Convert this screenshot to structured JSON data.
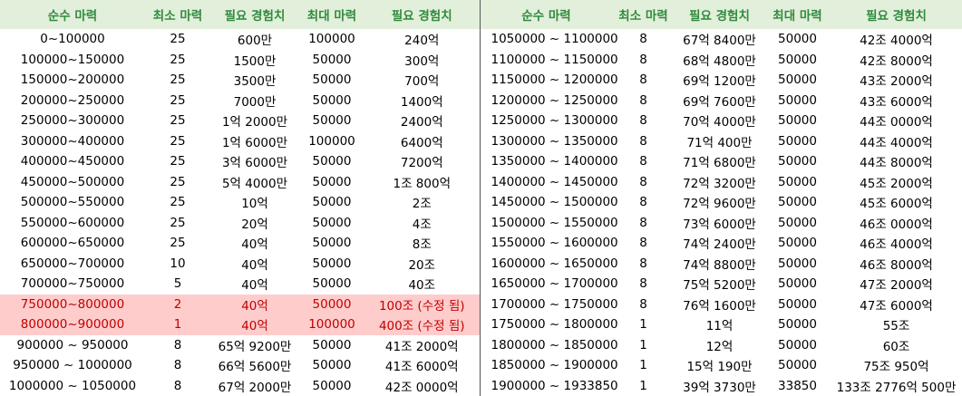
{
  "headers": [
    "순수 마력",
    "최소 마력",
    "필요 경험치",
    "최대 마력",
    "필요 경험치"
  ],
  "left_rows": [
    [
      "0~100000",
      "25",
      "600만",
      "100000",
      "240억"
    ],
    [
      "100000~150000",
      "25",
      "1500만",
      "50000",
      "300억"
    ],
    [
      "150000~200000",
      "25",
      "3500만",
      "50000",
      "700억"
    ],
    [
      "200000~250000",
      "25",
      "7000만",
      "50000",
      "1400억"
    ],
    [
      "250000~300000",
      "25",
      "1억 2000만",
      "50000",
      "2400억"
    ],
    [
      "300000~400000",
      "25",
      "1억 6000만",
      "100000",
      "6400억"
    ],
    [
      "400000~450000",
      "25",
      "3억 6000만",
      "50000",
      "7200억"
    ],
    [
      "450000~500000",
      "25",
      "5억 4000만",
      "50000",
      "1조 800억"
    ],
    [
      "500000~550000",
      "25",
      "10억",
      "50000",
      "2조"
    ],
    [
      "550000~600000",
      "25",
      "20억",
      "50000",
      "4조"
    ],
    [
      "600000~650000",
      "25",
      "40억",
      "50000",
      "8조"
    ],
    [
      "650000~700000",
      "10",
      "40억",
      "50000",
      "20조"
    ],
    [
      "700000~750000",
      "5",
      "40억",
      "50000",
      "40조"
    ],
    [
      "750000~800000",
      "2",
      "40억",
      "50000",
      "100조 (수정 됨)"
    ],
    [
      "800000~900000",
      "1",
      "40억",
      "100000",
      "400조 (수정 됨)"
    ],
    [
      "900000 ~ 950000",
      "8",
      "65억 9200만",
      "50000",
      "41조 2000억"
    ],
    [
      "950000 ~ 1000000",
      "8",
      "66억 5600만",
      "50000",
      "41조 6000억"
    ],
    [
      "1000000 ~ 1050000",
      "8",
      "67억 2000만",
      "50000",
      "42조 0000억"
    ]
  ],
  "right_rows": [
    [
      "1050000 ~ 1100000",
      "8",
      "67억 8400만",
      "50000",
      "42조 4000억"
    ],
    [
      "1100000 ~ 1150000",
      "8",
      "68억 4800만",
      "50000",
      "42조 8000억"
    ],
    [
      "1150000 ~ 1200000",
      "8",
      "69억 1200만",
      "50000",
      "43조 2000억"
    ],
    [
      "1200000 ~ 1250000",
      "8",
      "69억 7600만",
      "50000",
      "43조 6000억"
    ],
    [
      "1250000 ~ 1300000",
      "8",
      "70억 4000만",
      "50000",
      "44조 0000억"
    ],
    [
      "1300000 ~ 1350000",
      "8",
      "71억 400만",
      "50000",
      "44조 4000억"
    ],
    [
      "1350000 ~ 1400000",
      "8",
      "71억 6800만",
      "50000",
      "44조 8000억"
    ],
    [
      "1400000 ~ 1450000",
      "8",
      "72억 3200만",
      "50000",
      "45조 2000억"
    ],
    [
      "1450000 ~ 1500000",
      "8",
      "72억 9600만",
      "50000",
      "45조 6000억"
    ],
    [
      "1500000 ~ 1550000",
      "8",
      "73억 6000만",
      "50000",
      "46조 0000억"
    ],
    [
      "1550000 ~ 1600000",
      "8",
      "74억 2400만",
      "50000",
      "46조 4000억"
    ],
    [
      "1600000 ~ 1650000",
      "8",
      "74억 8800만",
      "50000",
      "46조 8000억"
    ],
    [
      "1650000 ~ 1700000",
      "8",
      "75억 5200만",
      "50000",
      "47조 2000억"
    ],
    [
      "1700000 ~ 1750000",
      "8",
      "76억 1600만",
      "50000",
      "47조 6000억"
    ],
    [
      "1750000 ~ 1800000",
      "1",
      "11억",
      "50000",
      "55조"
    ],
    [
      "1800000 ~ 1850000",
      "1",
      "12억",
      "50000",
      "60조"
    ],
    [
      "1850000 ~ 1900000",
      "1",
      "15억 190만",
      "50000",
      "75조 950억"
    ],
    [
      "1900000 ~ 1933850",
      "1",
      "39억 3730만",
      "33850",
      "133조 2776억 500만"
    ]
  ],
  "highlight": {
    "rows": [
      13,
      14
    ],
    "background": "#ffcccc",
    "text": "#c00000"
  },
  "colors": {
    "header_bg": "#e2efda",
    "header_text": "#2e8b3e"
  }
}
